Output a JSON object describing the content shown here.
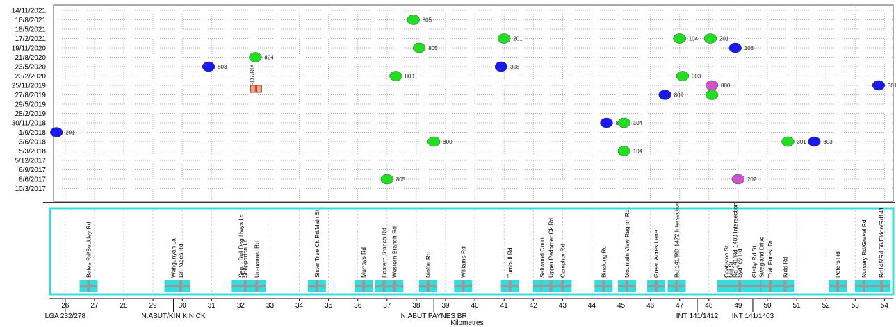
{
  "chart_data": {
    "type": "scatter",
    "xlabel": "Kilometres",
    "xlim": [
      25.6,
      54.3
    ],
    "x_ticks": [
      26,
      27,
      28,
      29,
      30,
      31,
      32,
      33,
      34,
      35,
      36,
      37,
      38,
      39,
      40,
      41,
      42,
      43,
      44,
      45,
      46,
      47,
      48,
      49,
      50,
      51,
      52,
      53,
      54
    ],
    "y_dates": [
      "14/11/2021",
      "16/8/2021",
      "18/5/2021",
      "17/2/2021",
      "19/11/2020",
      "21/8/2020",
      "23/5/2020",
      "23/2/2020",
      "25/11/2019",
      "27/8/2019",
      "29/5/2019",
      "28/2/2019",
      "30/11/2018",
      "1/9/2018",
      "3/6/2018",
      "5/3/2018",
      "5/12/2017",
      "6/9/2017",
      "8/6/2017",
      "10/3/2017"
    ],
    "grid": true,
    "points": [
      {
        "x": 37.9,
        "y": "16/8/2021",
        "label": "805",
        "color": "#22dd22"
      },
      {
        "x": 41.0,
        "y": "17/2/2021",
        "label": "201",
        "color": "#22dd22"
      },
      {
        "x": 38.1,
        "y": "19/11/2020",
        "label": "805",
        "color": "#22dd22"
      },
      {
        "x": 47.0,
        "y": "17/2/2021",
        "label": "104",
        "color": "#22dd22"
      },
      {
        "x": 48.05,
        "y": "17/2/2021",
        "label": "201",
        "color": "#22dd22"
      },
      {
        "x": 48.9,
        "y": "19/11/2020",
        "label": "108",
        "color": "#1a1aee"
      },
      {
        "x": 32.5,
        "y": "21/8/2020",
        "label": "804",
        "color": "#22dd22"
      },
      {
        "x": 30.9,
        "y": "23/5/2020",
        "label": "803",
        "color": "#1a1aee"
      },
      {
        "x": 40.9,
        "y": "23/5/2020",
        "label": "308",
        "color": "#1a1aee"
      },
      {
        "x": 47.1,
        "y": "23/2/2020",
        "label": "303",
        "color": "#22dd22"
      },
      {
        "x": 37.3,
        "y": "23/2/2020",
        "label": "803",
        "color": "#22dd22"
      },
      {
        "x": 53.8,
        "y": "25/11/2019",
        "label": "301",
        "color": "#1a1aee"
      },
      {
        "x": 46.5,
        "y": "27/8/2019",
        "label": "809",
        "color": "#1a1aee"
      },
      {
        "x": 48.1,
        "y": "25/11/2019",
        "label": "800",
        "color": "#cc55cc"
      },
      {
        "x": 48.1,
        "y": "27/8/2019",
        "label": "",
        "color": "#22dd22"
      },
      {
        "x": 25.7,
        "y": "1/9/2018",
        "label": "201",
        "color": "#1a1aee"
      },
      {
        "x": 44.5,
        "y": "30/11/2018",
        "label": "804",
        "color": "#1a1aee"
      },
      {
        "x": 45.1,
        "y": "30/11/2018",
        "label": "104",
        "color": "#22dd22"
      },
      {
        "x": 38.6,
        "y": "3/6/2018",
        "label": "800",
        "color": "#22dd22"
      },
      {
        "x": 45.1,
        "y": "5/3/2018",
        "label": "104",
        "color": "#22dd22"
      },
      {
        "x": 50.7,
        "y": "3/6/2018",
        "label": "301",
        "color": "#22dd22"
      },
      {
        "x": 51.6,
        "y": "3/6/2018",
        "label": "803",
        "color": "#1a1aee"
      },
      {
        "x": 37.0,
        "y": "8/6/2017",
        "label": "805",
        "color": "#22dd22"
      },
      {
        "x": 49.0,
        "y": "8/6/2017",
        "label": "202",
        "color": "#cc55cc"
      }
    ],
    "annotation_text": "RD7/RIX",
    "roads": [
      {
        "km": 26.8,
        "name": "Bates Rd/Buckley Rd"
      },
      {
        "km": 29.7,
        "name": "Wahgunyah La"
      },
      {
        "km": 29.95,
        "name": "Dr Pages Rd"
      },
      {
        "km": 32.0,
        "name": "Seg... Bull Dog Hwys La"
      },
      {
        "km": 32.15,
        "name": "Shepparton La"
      },
      {
        "km": 32.55,
        "name": "Un-named Rd"
      },
      {
        "km": 34.6,
        "name": "Sister Tree Ck Rd/Main St"
      },
      {
        "km": 36.2,
        "name": "Murrays Rd"
      },
      {
        "km": 36.9,
        "name": "Eastern Branch Rd"
      },
      {
        "km": 37.25,
        "name": "Western Branch Rd"
      },
      {
        "km": 38.4,
        "name": "Moffat Rd"
      },
      {
        "km": 39.6,
        "name": "Williams Rd"
      },
      {
        "km": 41.2,
        "name": "Turnbull Rd"
      },
      {
        "km": 42.3,
        "name": "Saltwood Court"
      },
      {
        "km": 42.6,
        "name": "Upper Pedamer Ck Rd"
      },
      {
        "km": 43.0,
        "name": "Camphor Rd"
      },
      {
        "km": 44.4,
        "name": "Binalong Rd"
      },
      {
        "km": 45.2,
        "name": "Mountain View Regnm Rd"
      },
      {
        "km": 46.2,
        "name": "Green Acres Lane"
      },
      {
        "km": 46.9,
        "name": "Rd 141/RD 1472 Intersection"
      },
      {
        "km": 48.6,
        "name": "Coatiston St"
      },
      {
        "km": 48.75,
        "name": "Mill St"
      },
      {
        "km": 48.9,
        "name": "Rd 141/Rd 1403 Intersection"
      },
      {
        "km": 49.05,
        "name": "Sydney Rd"
      },
      {
        "km": 49.55,
        "name": "Gleby Rd St"
      },
      {
        "km": 49.8,
        "name": "Swagland Drive"
      },
      {
        "km": 50.1,
        "name": "Trail Forest Dr"
      },
      {
        "km": 50.6,
        "name": "Kidd Rd"
      },
      {
        "km": 52.4,
        "name": "Peters Rd"
      },
      {
        "km": 53.3,
        "name": "Nursery Rd/Gravel Rd"
      },
      {
        "km": 53.9,
        "name": "Rd145/Rd 66/Eldon/Rd141"
      }
    ],
    "chainage_labels": [
      {
        "km": 26.0,
        "text": "LGA 232/278"
      },
      {
        "km": 29.7,
        "text": "N.ABUT/KIN KIN CK"
      },
      {
        "km": 38.6,
        "text": "N.ABUT PAYNES BR"
      },
      {
        "km": 47.6,
        "text": "INT 141/1412"
      },
      {
        "km": 49.5,
        "text": "INT 141/1403"
      }
    ],
    "legend_colors": {
      "green": "#22dd22",
      "blue": "#1a1aee",
      "magenta": "#cc55cc",
      "panel_border": "#33dddd"
    }
  }
}
